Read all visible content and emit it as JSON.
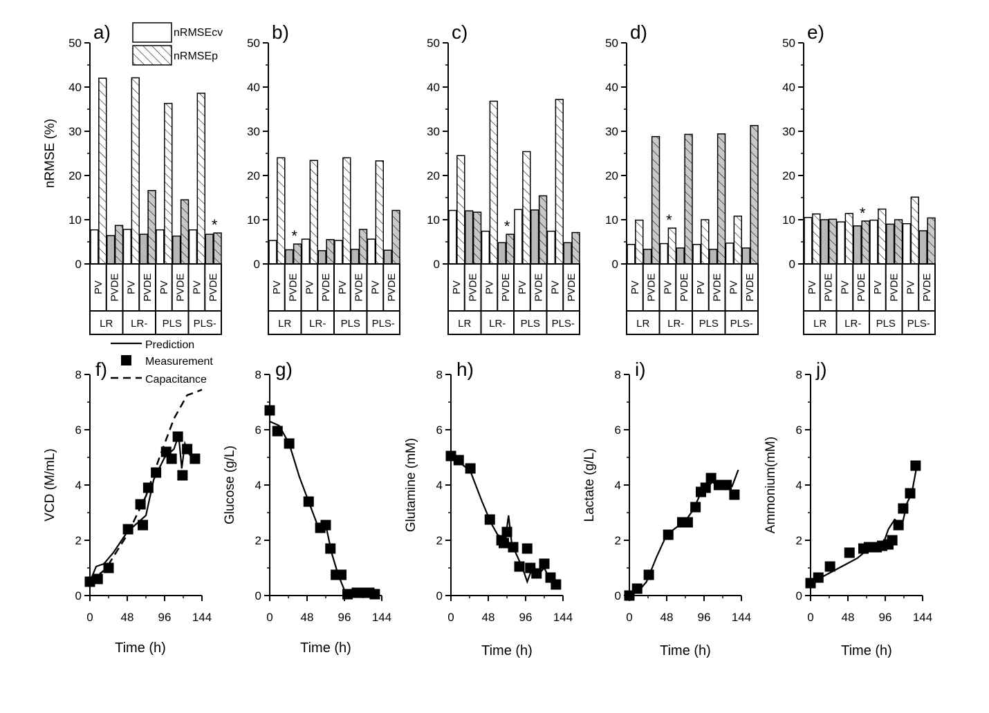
{
  "chart_data": {
    "bar_panels": [
      {
        "panel": "a)",
        "type": "bar",
        "ylabel": "nRMSE (%)",
        "ylim": [
          0,
          50
        ],
        "yticks": [
          0,
          10,
          20,
          30,
          40,
          50
        ],
        "methods": [
          "LR",
          "LR-",
          "PLS",
          "PLS-"
        ],
        "variants": [
          "PV",
          "PVDE"
        ],
        "series": [
          {
            "name": "nRMSEcv",
            "style": "open"
          },
          {
            "name": "nRMSEp",
            "style": "hatched"
          }
        ],
        "values": [
          [
            [
              7.7,
              42.0
            ],
            [
              6.4,
              8.7
            ]
          ],
          [
            [
              7.8,
              42.1
            ],
            [
              6.7,
              16.6
            ]
          ],
          [
            [
              7.7,
              36.3
            ],
            [
              6.3,
              14.5
            ]
          ],
          [
            [
              7.7,
              38.6
            ],
            [
              6.7,
              7.0
            ]
          ]
        ],
        "best": {
          "method": 3,
          "variant": 1,
          "marker": "*"
        }
      },
      {
        "panel": "b)",
        "type": "bar",
        "ylim": [
          0,
          50
        ],
        "yticks": [
          0,
          10,
          20,
          30,
          40,
          50
        ],
        "methods": [
          "LR",
          "LR-",
          "PLS",
          "PLS-"
        ],
        "variants": [
          "PV",
          "PVDE"
        ],
        "values": [
          [
            [
              5.3,
              24.0
            ],
            [
              3.2,
              4.5
            ]
          ],
          [
            [
              5.6,
              23.4
            ],
            [
              3.0,
              5.5
            ]
          ],
          [
            [
              5.3,
              24.0
            ],
            [
              3.3,
              7.8
            ]
          ],
          [
            [
              5.6,
              23.3
            ],
            [
              3.1,
              12.1
            ]
          ]
        ],
        "best": {
          "method": 0,
          "variant": 1,
          "marker": "*"
        }
      },
      {
        "panel": "c)",
        "type": "bar",
        "ylim": [
          0,
          50
        ],
        "yticks": [
          0,
          10,
          20,
          30,
          40,
          50
        ],
        "methods": [
          "LR",
          "LR-",
          "PLS",
          "PLS-"
        ],
        "variants": [
          "PV",
          "PVDE"
        ],
        "values": [
          [
            [
              12.1,
              24.5
            ],
            [
              12.0,
              11.7
            ]
          ],
          [
            [
              7.4,
              36.8
            ],
            [
              4.8,
              6.7
            ]
          ],
          [
            [
              12.3,
              25.4
            ],
            [
              12.2,
              15.4
            ]
          ],
          [
            [
              7.4,
              37.2
            ],
            [
              4.8,
              7.1
            ]
          ]
        ],
        "best": {
          "method": 1,
          "variant": 1,
          "marker": "*"
        }
      },
      {
        "panel": "d)",
        "type": "bar",
        "ylim": [
          0,
          50
        ],
        "yticks": [
          0,
          10,
          20,
          30,
          40,
          50
        ],
        "methods": [
          "LR",
          "LR-",
          "PLS",
          "PLS-"
        ],
        "variants": [
          "PV",
          "PVDE"
        ],
        "values": [
          [
            [
              4.4,
              9.9
            ],
            [
              3.3,
              28.8
            ]
          ],
          [
            [
              4.6,
              8.1
            ],
            [
              3.6,
              29.3
            ]
          ],
          [
            [
              4.4,
              10.0
            ],
            [
              3.3,
              29.4
            ]
          ],
          [
            [
              4.7,
              10.8
            ],
            [
              3.6,
              31.3
            ]
          ]
        ],
        "best": {
          "method": 1,
          "variant": 0,
          "marker": "*"
        }
      },
      {
        "panel": "e)",
        "type": "bar",
        "ylim": [
          0,
          50
        ],
        "yticks": [
          0,
          10,
          20,
          30,
          40,
          50
        ],
        "methods": [
          "LR",
          "LR-",
          "PLS",
          "PLS-"
        ],
        "variants": [
          "PV",
          "PVDE"
        ],
        "values": [
          [
            [
              10.5,
              11.3
            ],
            [
              10.0,
              10.1
            ]
          ],
          [
            [
              9.5,
              11.4
            ],
            [
              8.6,
              9.7
            ]
          ],
          [
            [
              9.9,
              12.4
            ],
            [
              9.0,
              10.0
            ]
          ],
          [
            [
              9.1,
              15.1
            ],
            [
              7.5,
              10.4
            ]
          ]
        ],
        "best": {
          "method": 1,
          "variant": 1,
          "marker": "*"
        }
      }
    ],
    "line_panels": [
      {
        "panel": "f)",
        "type": "line",
        "ylabel": "VCD (M/mL)",
        "xlabel": "Time (h)",
        "xlim": [
          0,
          144
        ],
        "ylim": [
          0,
          8
        ],
        "xticks": [
          0,
          48,
          96,
          144
        ],
        "yticks": [
          0,
          2,
          4,
          6,
          8
        ],
        "measurement": [
          [
            0,
            0.5
          ],
          [
            10,
            0.6
          ],
          [
            24,
            1.0
          ],
          [
            49,
            2.4
          ],
          [
            65,
            3.3
          ],
          [
            68,
            2.55
          ],
          [
            75,
            3.9
          ],
          [
            85,
            4.45
          ],
          [
            98,
            5.2
          ],
          [
            105,
            4.95
          ],
          [
            113,
            5.75
          ],
          [
            119,
            4.35
          ],
          [
            125,
            5.3
          ],
          [
            135,
            4.95
          ]
        ],
        "prediction": [
          [
            0,
            0.5
          ],
          [
            8,
            1.05
          ],
          [
            18,
            1.15
          ],
          [
            30,
            1.55
          ],
          [
            48,
            2.3
          ],
          [
            72,
            2.9
          ],
          [
            82,
            4.2
          ],
          [
            96,
            5.0
          ],
          [
            108,
            5.3
          ],
          [
            114,
            5.8
          ],
          [
            118,
            4.6
          ],
          [
            122,
            5.5
          ],
          [
            128,
            5.1
          ],
          [
            135,
            4.9
          ]
        ],
        "capacitance": [
          [
            0,
            0.5
          ],
          [
            20,
            0.95
          ],
          [
            48,
            2.2
          ],
          [
            72,
            3.6
          ],
          [
            90,
            5.05
          ],
          [
            108,
            6.4
          ],
          [
            125,
            7.25
          ],
          [
            135,
            7.35
          ],
          [
            144,
            7.45
          ]
        ]
      },
      {
        "panel": "g)",
        "type": "line",
        "ylabel": "Glucose (g/L)",
        "xlabel": "Time (h)",
        "xlim": [
          0,
          144
        ],
        "ylim": [
          0,
          8
        ],
        "xticks": [
          0,
          48,
          96,
          144
        ],
        "yticks": [
          0,
          2,
          4,
          6,
          8
        ],
        "measurement": [
          [
            0,
            6.7
          ],
          [
            10,
            5.95
          ],
          [
            25,
            5.5
          ],
          [
            50,
            3.4
          ],
          [
            65,
            2.45
          ],
          [
            72,
            2.55
          ],
          [
            78,
            1.7
          ],
          [
            85,
            0.75
          ],
          [
            92,
            0.75
          ],
          [
            100,
            0.05
          ],
          [
            112,
            0.1
          ],
          [
            122,
            0.1
          ],
          [
            128,
            0.1
          ],
          [
            135,
            0.05
          ]
        ],
        "prediction": [
          [
            0,
            6.3
          ],
          [
            12,
            6.15
          ],
          [
            25,
            5.5
          ],
          [
            38,
            4.3
          ],
          [
            50,
            3.4
          ],
          [
            62,
            2.5
          ],
          [
            72,
            2.55
          ],
          [
            80,
            1.5
          ],
          [
            88,
            0.75
          ],
          [
            96,
            0.2
          ],
          [
            110,
            0.15
          ],
          [
            125,
            0.1
          ],
          [
            140,
            0.1
          ]
        ]
      },
      {
        "panel": "h)",
        "type": "line",
        "ylabel": "Glutamine (mM)",
        "xlabel": "Time (h)",
        "xlim": [
          0,
          144
        ],
        "ylim": [
          0,
          8
        ],
        "xticks": [
          0,
          48,
          96,
          144
        ],
        "yticks": [
          0,
          2,
          4,
          6,
          8
        ],
        "measurement": [
          [
            0,
            5.05
          ],
          [
            10,
            4.9
          ],
          [
            25,
            4.6
          ],
          [
            50,
            2.75
          ],
          [
            65,
            2.0
          ],
          [
            68,
            1.9
          ],
          [
            72,
            2.3
          ],
          [
            80,
            1.75
          ],
          [
            88,
            1.05
          ],
          [
            98,
            1.7
          ],
          [
            102,
            1.0
          ],
          [
            110,
            0.8
          ],
          [
            120,
            1.15
          ],
          [
            128,
            0.65
          ],
          [
            135,
            0.4
          ]
        ],
        "prediction": [
          [
            0,
            5.1
          ],
          [
            10,
            4.85
          ],
          [
            25,
            4.5
          ],
          [
            40,
            3.4
          ],
          [
            52,
            2.6
          ],
          [
            60,
            2.2
          ],
          [
            70,
            2.05
          ],
          [
            74,
            2.9
          ],
          [
            78,
            1.9
          ],
          [
            84,
            1.5
          ],
          [
            92,
            1.0
          ],
          [
            98,
            0.5
          ],
          [
            106,
            1.1
          ],
          [
            112,
            0.75
          ],
          [
            120,
            1.0
          ],
          [
            130,
            0.4
          ],
          [
            136,
            0.35
          ]
        ]
      },
      {
        "panel": "i)",
        "type": "line",
        "ylabel": "Lactate (g/L)",
        "xlabel": "Time (h)",
        "xlim": [
          0,
          144
        ],
        "ylim": [
          0,
          8
        ],
        "xticks": [
          0,
          48,
          96,
          144
        ],
        "yticks": [
          0,
          2,
          4,
          6,
          8
        ],
        "measurement": [
          [
            0,
            0.0
          ],
          [
            10,
            0.25
          ],
          [
            25,
            0.75
          ],
          [
            50,
            2.2
          ],
          [
            68,
            2.65
          ],
          [
            75,
            2.65
          ],
          [
            85,
            3.2
          ],
          [
            92,
            3.75
          ],
          [
            98,
            3.9
          ],
          [
            105,
            4.25
          ],
          [
            115,
            4.0
          ],
          [
            125,
            4.0
          ],
          [
            135,
            3.65
          ]
        ],
        "prediction": [
          [
            0,
            0.05
          ],
          [
            10,
            0.1
          ],
          [
            22,
            0.5
          ],
          [
            35,
            1.4
          ],
          [
            48,
            2.2
          ],
          [
            62,
            2.5
          ],
          [
            72,
            2.7
          ],
          [
            82,
            3.1
          ],
          [
            90,
            3.6
          ],
          [
            98,
            3.8
          ],
          [
            106,
            4.1
          ],
          [
            115,
            4.0
          ],
          [
            125,
            3.95
          ],
          [
            132,
            3.95
          ],
          [
            140,
            4.55
          ]
        ]
      },
      {
        "panel": "j)",
        "type": "line",
        "ylabel": "Ammonium(mM)",
        "xlabel": "Time (h)",
        "xlim": [
          0,
          144
        ],
        "ylim": [
          0,
          8
        ],
        "xticks": [
          0,
          48,
          96,
          144
        ],
        "yticks": [
          0,
          2,
          4,
          6,
          8
        ],
        "measurement": [
          [
            0,
            0.45
          ],
          [
            10,
            0.65
          ],
          [
            25,
            1.05
          ],
          [
            50,
            1.55
          ],
          [
            68,
            1.7
          ],
          [
            75,
            1.75
          ],
          [
            85,
            1.75
          ],
          [
            92,
            1.8
          ],
          [
            100,
            1.85
          ],
          [
            105,
            2.0
          ],
          [
            113,
            2.55
          ],
          [
            119,
            3.15
          ],
          [
            128,
            3.7
          ],
          [
            135,
            4.7
          ]
        ],
        "prediction": [
          [
            0,
            0.45
          ],
          [
            20,
            0.75
          ],
          [
            40,
            1.05
          ],
          [
            60,
            1.35
          ],
          [
            75,
            1.7
          ],
          [
            85,
            1.85
          ],
          [
            95,
            2.0
          ],
          [
            100,
            2.4
          ],
          [
            108,
            2.75
          ],
          [
            114,
            2.65
          ],
          [
            118,
            2.6
          ],
          [
            124,
            3.35
          ],
          [
            130,
            3.7
          ],
          [
            137,
            4.75
          ]
        ]
      }
    ],
    "legends": {
      "bar_series": [
        "nRMSEcv",
        "nRMSEp"
      ],
      "line_series": [
        "Prediction",
        "Measurement",
        "Capacitance"
      ]
    }
  }
}
